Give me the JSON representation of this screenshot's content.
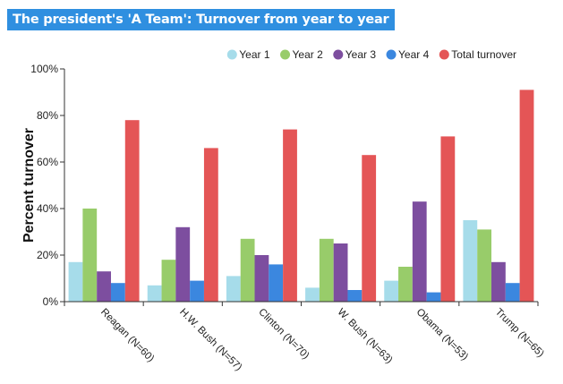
{
  "title": "The president's 'A Team': Turnover from year to year",
  "chart_data": {
    "type": "bar",
    "title": "The president's 'A Team': Turnover from year to year",
    "ylabel": "Percent turnover",
    "xlabel": "",
    "ylim": [
      0,
      100
    ],
    "yticks": [
      "0%",
      "20%",
      "40%",
      "60%",
      "80%",
      "100%"
    ],
    "categories": [
      "Reagan (N=60)",
      "H.W. Bush (N=57)",
      "Clinton (N=70)",
      "W. Bush (N=63)",
      "Obama (N=53)",
      "Trump (N=65)"
    ],
    "series": [
      {
        "name": "Year 1",
        "color": "#a6dcea",
        "values": [
          17,
          7,
          11,
          6,
          9,
          35
        ]
      },
      {
        "name": "Year 2",
        "color": "#98cc6a",
        "values": [
          40,
          18,
          27,
          27,
          15,
          31
        ]
      },
      {
        "name": "Year 3",
        "color": "#7d4e9f",
        "values": [
          13,
          32,
          20,
          25,
          43,
          17
        ]
      },
      {
        "name": "Year 4",
        "color": "#3b87df",
        "values": [
          8,
          9,
          16,
          5,
          4,
          8
        ]
      },
      {
        "name": "Total turnover",
        "color": "#e45556",
        "values": [
          78,
          66,
          74,
          63,
          71,
          91
        ]
      }
    ],
    "legend_position": "top",
    "grid": false
  }
}
